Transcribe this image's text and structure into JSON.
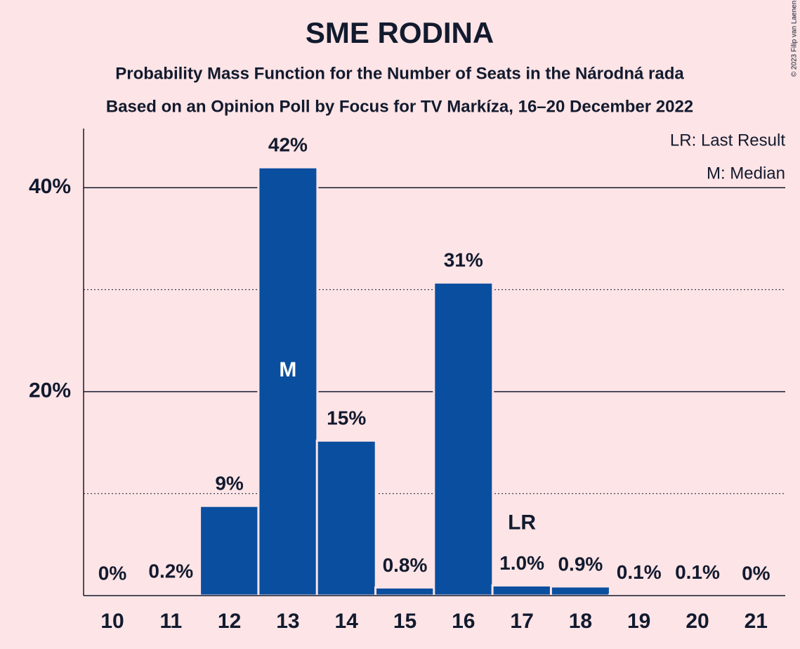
{
  "chart_data": {
    "type": "bar",
    "title": "SME RODINA",
    "subtitle": "Probability Mass Function for the Number of Seats in the Národná rada",
    "subtitle2": "Based on an Opinion Poll by Focus for TV Markíza, 16–20 December 2022",
    "copyright": "© 2023 Filip van Laenen",
    "legend": [
      "LR: Last Result",
      "M: Median"
    ],
    "categories": [
      10,
      11,
      12,
      13,
      14,
      15,
      16,
      17,
      18,
      19,
      20,
      21
    ],
    "values": [
      0,
      0.2,
      8.8,
      42,
      15.2,
      0.8,
      30.7,
      1.0,
      0.9,
      0.1,
      0.1,
      0
    ],
    "value_labels": [
      "0%",
      "0.2%",
      "9%",
      "42%",
      "15%",
      "0.8%",
      "31%",
      "1.0%",
      "0.9%",
      "0.1%",
      "0.1%",
      "0%"
    ],
    "annotations": [
      {
        "text": "M",
        "category": 13
      },
      {
        "text": "LR",
        "category": 17
      }
    ],
    "color": "#0a4e9f",
    "ylim": [
      0,
      45.8
    ],
    "yticks": [
      {
        "value": 20,
        "label": "20%"
      },
      {
        "value": 40,
        "label": "40%"
      }
    ],
    "minor_yticks": [
      10,
      30
    ],
    "grid": true
  }
}
